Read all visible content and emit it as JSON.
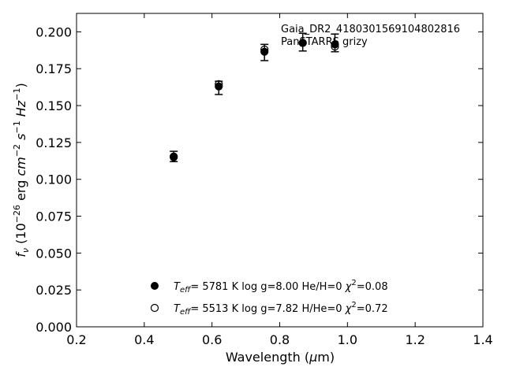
{
  "chart_data": {
    "type": "scatter",
    "xlabel": "Wavelength (μm)",
    "ylabel": "fν (10⁻²⁶ erg cm⁻² s⁻¹ Hz⁻¹)",
    "xlim": [
      0.2,
      1.4
    ],
    "ylim": [
      0.0,
      0.2125
    ],
    "xticks": [
      "0.2",
      "0.4",
      "0.6",
      "0.8",
      "1.0",
      "1.2",
      "1.4"
    ],
    "yticks": [
      "0.000",
      "0.025",
      "0.050",
      "0.075",
      "0.100",
      "0.125",
      "0.150",
      "0.175",
      "0.200"
    ],
    "grid": false,
    "annotations": [
      "Gaia_DR2_4180301569104802816",
      "PanSTARRS grizy"
    ],
    "legend_position": "lower-center",
    "observed": {
      "x": [
        0.487,
        0.62,
        0.755,
        0.868,
        0.963
      ],
      "y": [
        0.1155,
        0.162,
        0.186,
        0.193,
        0.1925
      ],
      "yerr": [
        0.0035,
        0.0045,
        0.0055,
        0.006,
        0.006
      ]
    },
    "series": [
      {
        "marker": "filled-circle",
        "label_parts": {
          "teff": "5781 K",
          "logg": "log g=8.00",
          "comp": "He/H=0",
          "chi": "=0.08"
        },
        "x": [
          0.487,
          0.62,
          0.755,
          0.868,
          0.963
        ],
        "y": [
          0.115,
          0.163,
          0.1865,
          0.1925,
          0.1915
        ]
      },
      {
        "marker": "open-circle",
        "label_parts": {
          "teff": "5513 K",
          "logg": "log g=7.82",
          "comp": "H/He=0",
          "chi": "=0.72"
        },
        "x": [
          0.487,
          0.62,
          0.755,
          0.868,
          0.963
        ],
        "y": [
          0.1155,
          0.1645,
          0.188,
          0.1925,
          0.19
        ]
      }
    ]
  }
}
